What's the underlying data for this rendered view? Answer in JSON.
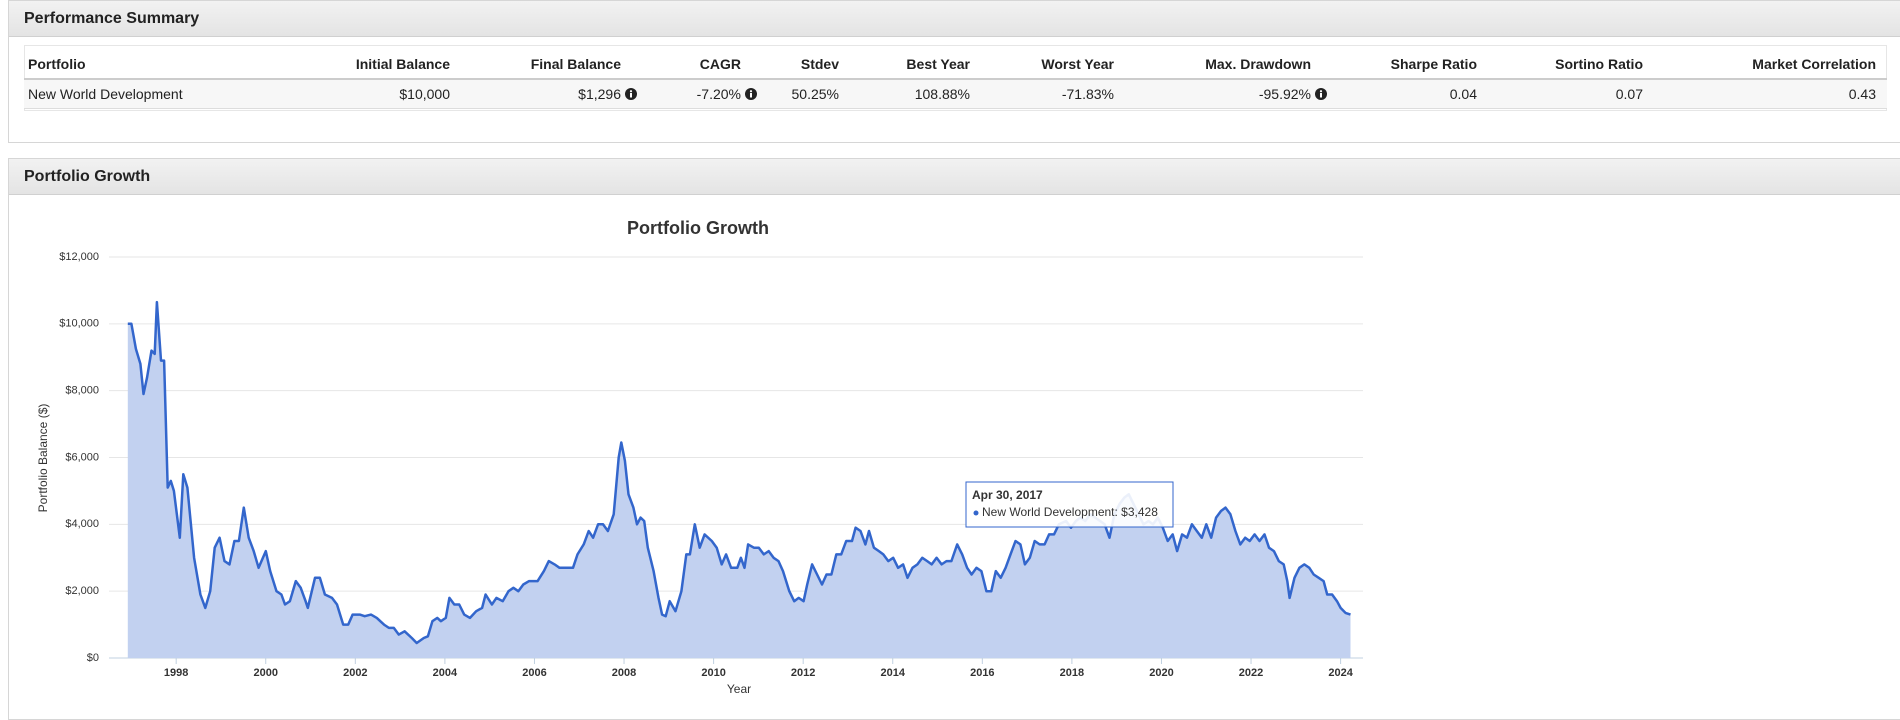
{
  "summary": {
    "title": "Performance Summary",
    "headers": [
      "Portfolio",
      "Initial Balance",
      "Final Balance",
      "CAGR",
      "Stdev",
      "Best Year",
      "Worst Year",
      "Max. Drawdown",
      "Sharpe Ratio",
      "Sortino Ratio",
      "Market Correlation"
    ],
    "rows": [
      [
        "New World Development",
        "$10,000",
        "$1,296",
        "-7.20%",
        "50.25%",
        "108.88%",
        "-71.83%",
        "-95.92%",
        "0.04",
        "0.07",
        "0.43"
      ]
    ]
  },
  "growth_panel": {
    "title": "Portfolio Growth"
  },
  "chart_data": {
    "type": "area",
    "title": "Portfolio Growth",
    "x_label": "Year",
    "y_label": "Portfolio Balance ($)",
    "xlim": [
      1996.5,
      2024.5
    ],
    "xticks": [
      1998,
      2000,
      2002,
      2004,
      2006,
      2008,
      2010,
      2012,
      2014,
      2016,
      2018,
      2020,
      2022,
      2024
    ],
    "ylim": [
      0,
      12000
    ],
    "yticks": [
      {
        "value": 0,
        "label": "$0"
      },
      {
        "value": 2000,
        "label": "$2,000"
      },
      {
        "value": 4000,
        "label": "$4,000"
      },
      {
        "value": 6000,
        "label": "$6,000"
      },
      {
        "value": 8000,
        "label": "$8,000"
      },
      {
        "value": 10000,
        "label": "$10,000"
      },
      {
        "value": 12000,
        "label": "$12,000"
      }
    ],
    "grid": true,
    "tooltip": {
      "date": "Apr 30, 2017",
      "text": "New World Development: $3,428"
    },
    "x": [
      1996.92,
      1997.0,
      1997.1,
      1997.2,
      1997.27,
      1997.35,
      1997.45,
      1997.52,
      1997.57,
      1997.66,
      1997.73,
      1997.81,
      1997.88,
      1997.95,
      1998.08,
      1998.16,
      1998.25,
      1998.4,
      1998.54,
      1998.65,
      1998.76,
      1998.86,
      1998.97,
      1999.08,
      1999.19,
      1999.3,
      1999.4,
      1999.51,
      1999.62,
      1999.73,
      1999.84,
      2000.0,
      2000.1,
      2000.24,
      2000.35,
      2000.43,
      2000.54,
      2000.67,
      2000.78,
      2000.89,
      2000.94,
      2001.1,
      2001.21,
      2001.32,
      2001.48,
      2001.59,
      2001.73,
      2001.84,
      2001.94,
      2002.1,
      2002.21,
      2002.35,
      2002.48,
      2002.64,
      2002.75,
      2002.86,
      2002.97,
      2003.1,
      2003.26,
      2003.37,
      2003.53,
      2003.62,
      2003.72,
      2003.83,
      2003.91,
      2004.02,
      2004.1,
      2004.21,
      2004.32,
      2004.43,
      2004.56,
      2004.7,
      2004.83,
      2004.91,
      2005.05,
      2005.15,
      2005.29,
      2005.42,
      2005.53,
      2005.64,
      2005.75,
      2005.88,
      2006.07,
      2006.21,
      2006.32,
      2006.45,
      2006.56,
      2006.72,
      2006.86,
      2006.96,
      2007.1,
      2007.21,
      2007.31,
      2007.42,
      2007.53,
      2007.64,
      2007.77,
      2007.88,
      2007.94,
      2008.02,
      2008.1,
      2008.21,
      2008.29,
      2008.37,
      2008.45,
      2008.53,
      2008.66,
      2008.77,
      2008.85,
      2008.93,
      2009.02,
      2009.15,
      2009.28,
      2009.39,
      2009.47,
      2009.58,
      2009.69,
      2009.8,
      2009.96,
      2010.07,
      2010.18,
      2010.28,
      2010.39,
      2010.53,
      2010.61,
      2010.69,
      2010.77,
      2010.9,
      2011.01,
      2011.12,
      2011.23,
      2011.34,
      2011.45,
      2011.55,
      2011.69,
      2011.8,
      2011.9,
      2012.01,
      2012.09,
      2012.2,
      2012.31,
      2012.42,
      2012.52,
      2012.63,
      2012.74,
      2012.85,
      2012.96,
      2013.09,
      2013.17,
      2013.28,
      2013.39,
      2013.47,
      2013.58,
      2013.69,
      2013.79,
      2013.9,
      2014.01,
      2014.12,
      2014.23,
      2014.33,
      2014.44,
      2014.55,
      2014.66,
      2014.77,
      2014.87,
      2014.98,
      2015.09,
      2015.2,
      2015.31,
      2015.44,
      2015.55,
      2015.66,
      2015.76,
      2015.87,
      2015.98,
      2016.09,
      2016.2,
      2016.3,
      2016.41,
      2016.52,
      2016.63,
      2016.74,
      2016.85,
      2016.95,
      2017.06,
      2017.17,
      2017.28,
      2017.39,
      2017.49,
      2017.6,
      2017.71,
      2017.87,
      2017.98,
      2018.09,
      2018.19,
      2018.3,
      2018.41,
      2018.52,
      2018.63,
      2018.73,
      2018.84,
      2018.95,
      2019.06,
      2019.17,
      2019.27,
      2019.38,
      2019.49,
      2019.6,
      2019.71,
      2019.81,
      2019.92,
      2020.03,
      2020.14,
      2020.25,
      2020.35,
      2020.46,
      2020.57,
      2020.68,
      2020.79,
      2020.9,
      2021.0,
      2021.11,
      2021.22,
      2021.33,
      2021.43,
      2021.54,
      2021.65,
      2021.76,
      2021.87,
      2021.97,
      2022.08,
      2022.19,
      2022.3,
      2022.4,
      2022.51,
      2022.62,
      2022.73,
      2022.81,
      2022.86,
      2022.97,
      2023.08,
      2023.19,
      2023.3,
      2023.4,
      2023.51,
      2023.62,
      2023.7,
      2023.81,
      2023.92,
      2024.0,
      2024.11,
      2024.22
    ],
    "series": [
      {
        "name": "New World Development",
        "color": "#3366cc",
        "fill": "#c2d1f0",
        "values": [
          10000,
          10000,
          9250,
          8800,
          7900,
          8400,
          9200,
          9100,
          10650,
          8900,
          8900,
          5100,
          5300,
          5000,
          3600,
          5500,
          5100,
          3000,
          1900,
          1500,
          2000,
          3300,
          3600,
          2900,
          2800,
          3500,
          3500,
          4500,
          3600,
          3200,
          2700,
          3200,
          2600,
          2000,
          1900,
          1600,
          1700,
          2300,
          2100,
          1700,
          1500,
          2400,
          2400,
          1900,
          1800,
          1600,
          1000,
          1000,
          1300,
          1300,
          1250,
          1300,
          1200,
          1000,
          900,
          900,
          700,
          800,
          600,
          450,
          600,
          650,
          1100,
          1200,
          1100,
          1200,
          1800,
          1600,
          1600,
          1300,
          1200,
          1400,
          1500,
          1900,
          1600,
          1800,
          1700,
          2000,
          2100,
          2000,
          2200,
          2300,
          2300,
          2600,
          2900,
          2800,
          2700,
          2700,
          2700,
          3100,
          3400,
          3800,
          3600,
          4000,
          4000,
          3800,
          4300,
          6000,
          6450,
          5900,
          4900,
          4500,
          4000,
          4200,
          4100,
          3300,
          2600,
          1800,
          1300,
          1250,
          1700,
          1400,
          2000,
          3100,
          3100,
          4000,
          3300,
          3700,
          3500,
          3300,
          2800,
          3100,
          2700,
          2700,
          3000,
          2700,
          3400,
          3300,
          3300,
          3100,
          3200,
          3000,
          2900,
          2600,
          2000,
          1700,
          1800,
          1700,
          2200,
          2800,
          2500,
          2200,
          2500,
          2500,
          3100,
          3100,
          3500,
          3500,
          3900,
          3800,
          3400,
          3800,
          3300,
          3200,
          3100,
          2900,
          3000,
          2700,
          2800,
          2400,
          2700,
          2800,
          3000,
          2900,
          2800,
          3000,
          2800,
          2900,
          2900,
          3400,
          3100,
          2700,
          2500,
          2700,
          2600,
          2000,
          2000,
          2600,
          2400,
          2700,
          3100,
          3500,
          3400,
          2800,
          3000,
          3500,
          3400,
          3400,
          3700,
          3700,
          4000,
          4100,
          3900,
          4100,
          4200,
          4100,
          4300,
          4200,
          4100,
          4000,
          3600,
          4300,
          4600,
          4800,
          4900,
          4600,
          4300,
          4000,
          4100,
          4000,
          4200,
          3900,
          3500,
          3700,
          3200,
          3700,
          3600,
          4000,
          3800,
          3600,
          4000,
          3600,
          4200,
          4400,
          4500,
          4300,
          3800,
          3400,
          3600,
          3500,
          3700,
          3500,
          3700,
          3300,
          3200,
          2900,
          2800,
          2300,
          1800,
          2400,
          2700,
          2800,
          2700,
          2500,
          2400,
          2300,
          1900,
          1900,
          1700,
          1500,
          1350,
          1300
        ]
      }
    ]
  }
}
